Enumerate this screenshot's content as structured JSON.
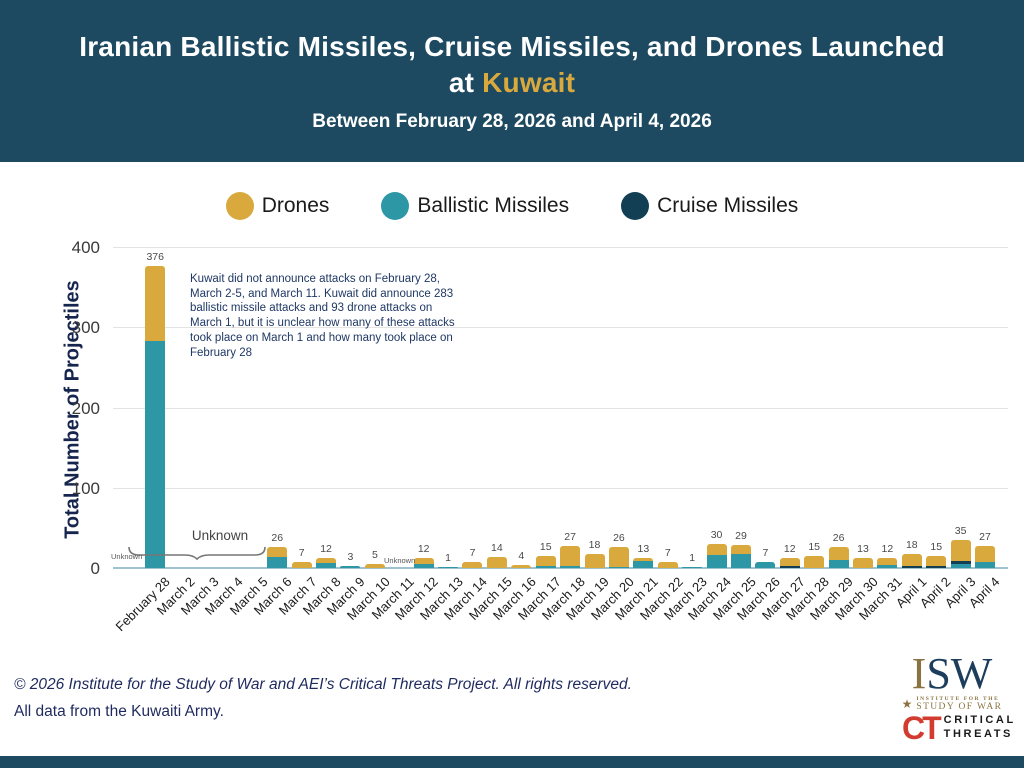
{
  "header": {
    "title_line1": "Iranian Ballistic Missiles, Cruise Missiles, and Drones Launched",
    "title_line2_prefix": "at ",
    "title_highlight": "Kuwait",
    "subtitle": "Between February 28, 2026 and April 4, 2026",
    "background_color": "#1D4A60",
    "highlight_color": "#D9A93D"
  },
  "legend": [
    {
      "label": "Drones",
      "color": "#D9A93D"
    },
    {
      "label": "Ballistic Missiles",
      "color": "#2E97A5"
    },
    {
      "label": "Cruise Missiles",
      "color": "#123F54"
    }
  ],
  "chart_data": {
    "type": "bar",
    "stacked": true,
    "title": "Iranian Ballistic Missiles, Cruise Missiles, and Drones Launched at Kuwait",
    "xlabel": "",
    "ylabel": "Total Number of Projectiles",
    "ylim": [
      0,
      400
    ],
    "yticks": [
      0,
      100,
      200,
      300,
      400
    ],
    "grid": "horizontal",
    "legend_position": "top",
    "categories": [
      "February 28",
      "March 2",
      "March 3",
      "March 4",
      "March 5",
      "March 6",
      "March 7",
      "March 8",
      "March 9",
      "March 10",
      "March 11",
      "March 12",
      "March 13",
      "March 14",
      "March 15",
      "March 16",
      "March 17",
      "March 18",
      "March 19",
      "March 20",
      "March 21",
      "March 22",
      "March 23",
      "March 24",
      "March 25",
      "March 26",
      "March 27",
      "March 28",
      "March 29",
      "March 30",
      "March 31",
      "April 1",
      "April 2",
      "April 3",
      "April 4"
    ],
    "series": [
      {
        "name": "Ballistic Missiles",
        "color": "#2E97A5",
        "values": [
          283,
          0,
          0,
          0,
          0,
          14,
          0,
          6,
          3,
          0,
          0,
          5,
          1,
          0,
          0,
          0,
          2,
          3,
          0,
          1,
          9,
          0,
          1,
          16,
          18,
          7,
          0,
          0,
          10,
          0,
          4,
          0,
          0,
          5,
          7
        ]
      },
      {
        "name": "Cruise Missiles",
        "color": "#123F54",
        "values": [
          0,
          0,
          0,
          0,
          0,
          0,
          0,
          0,
          0,
          0,
          0,
          0,
          0,
          0,
          0,
          0,
          0,
          0,
          0,
          0,
          0,
          0,
          0,
          0,
          0,
          0,
          2,
          0,
          0,
          0,
          0,
          2,
          2,
          4,
          0
        ]
      },
      {
        "name": "Drones",
        "color": "#D9A93D",
        "values": [
          93,
          0,
          0,
          0,
          0,
          12,
          7,
          6,
          0,
          5,
          0,
          7,
          0,
          7,
          14,
          4,
          13,
          24,
          18,
          25,
          4,
          7,
          0,
          14,
          11,
          0,
          10,
          15,
          16,
          13,
          8,
          16,
          13,
          26,
          20
        ]
      }
    ],
    "bar_totals": [
      376,
      null,
      null,
      null,
      null,
      26,
      7,
      12,
      3,
      5,
      null,
      12,
      1,
      7,
      14,
      4,
      15,
      27,
      18,
      26,
      13,
      7,
      1,
      30,
      29,
      7,
      12,
      15,
      26,
      13,
      12,
      18,
      15,
      35,
      27
    ],
    "annotations": {
      "note": "Kuwait did not announce attacks on February 28, March 2-5, and March 11. Kuwait did announce 283 ballistic missile attacks and 93 drone attacks on March 1, but it is unclear how many of these attacks took place on March 1 and how many took place on February 28",
      "unknown_feb28": "Unknown",
      "unknown_march2_5": "Unknown",
      "unknown_march11": "Unknown"
    }
  },
  "footer": {
    "line1": "© 2026 Institute for the Study of War and AEI’s Critical Threats Project. All rights reserved.",
    "line2": "All data from the Kuwaiti Army."
  },
  "logos": {
    "isw": {
      "i": "I",
      "sw": "SW",
      "star": "★",
      "sub_line1": "INSTITUTE FOR THE",
      "sub_line2": "STUDY OF WAR"
    },
    "ct": {
      "monogram": "CT",
      "line1": "CRITICAL",
      "line2": "THREATS"
    }
  }
}
